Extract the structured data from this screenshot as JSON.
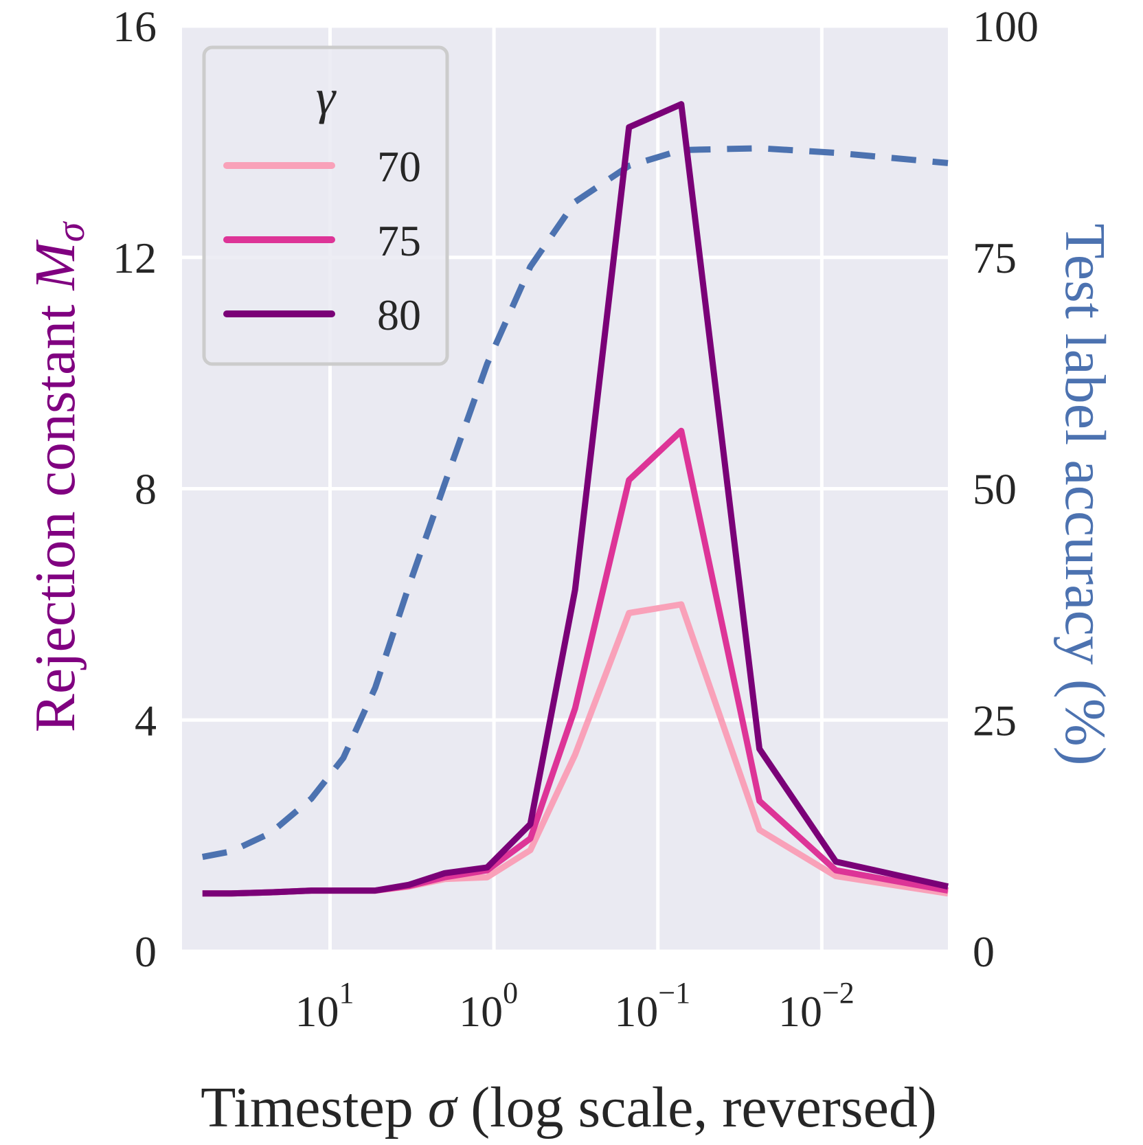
{
  "chart_data": {
    "type": "line",
    "xscale": "log",
    "x_reversed": true,
    "xlabel_prefix": "Timestep ",
    "xlabel_symbol": "σ",
    "xlabel_suffix": " (log scale, reversed)",
    "ylabel_left_prefix": "Rejection constant ",
    "ylabel_left_symbol": "M",
    "ylabel_left_subscript": "σ",
    "ylabel_right": "Test label accuracy (%)",
    "xlim": [
      80,
      0.0017
    ],
    "ylim_left": [
      0,
      16
    ],
    "ylim_right": [
      0,
      100
    ],
    "x_ticks": [
      {
        "base": "10",
        "exp": "1",
        "value": 10
      },
      {
        "base": "10",
        "exp": "0",
        "value": 1
      },
      {
        "base": "10",
        "exp": "−1",
        "value": 0.1
      },
      {
        "base": "10",
        "exp": "−2",
        "value": 0.01
      }
    ],
    "y_left_ticks": [
      "0",
      "4",
      "8",
      "12",
      "16"
    ],
    "y_right_ticks": [
      "0",
      "25",
      "50",
      "75",
      "100"
    ],
    "legend": {
      "title": "γ",
      "position": "upper-left"
    },
    "colors": {
      "left_axis": "#800080",
      "right_axis": "#4c72b0",
      "plot_bg": "#eaeaf2",
      "grid": "#ffffff"
    },
    "x": [
      60,
      40,
      23,
      13,
      8.3,
      5.3,
      3.3,
      2.0,
      1.1,
      0.6,
      0.32,
      0.15,
      0.072,
      0.024,
      0.0082,
      0.0017
    ],
    "series": [
      {
        "name": "70",
        "axis": "left",
        "color": "#f9a1b9",
        "values": [
          1.0,
          1.0,
          1.02,
          1.05,
          1.05,
          1.05,
          1.12,
          1.25,
          1.28,
          1.75,
          3.4,
          5.85,
          6.0,
          2.1,
          1.3,
          1.0
        ]
      },
      {
        "name": "75",
        "axis": "left",
        "color": "#dd3497",
        "values": [
          1.0,
          1.0,
          1.02,
          1.05,
          1.05,
          1.05,
          1.13,
          1.28,
          1.4,
          1.95,
          4.2,
          8.15,
          9.0,
          2.6,
          1.4,
          1.05
        ]
      },
      {
        "name": "80",
        "axis": "left",
        "color": "#7a0177",
        "values": [
          1.0,
          1.0,
          1.02,
          1.05,
          1.05,
          1.05,
          1.15,
          1.35,
          1.45,
          2.2,
          6.25,
          14.25,
          14.65,
          3.5,
          1.55,
          1.12
        ]
      },
      {
        "name": "accuracy",
        "axis": "right",
        "color": "#4c72b0",
        "dash": true,
        "values": [
          10.2,
          10.8,
          12.8,
          16.5,
          20.9,
          28.5,
          39.5,
          50.5,
          63.5,
          74.0,
          81.0,
          84.9,
          86.6,
          86.8,
          86.3,
          85.2
        ]
      }
    ]
  }
}
